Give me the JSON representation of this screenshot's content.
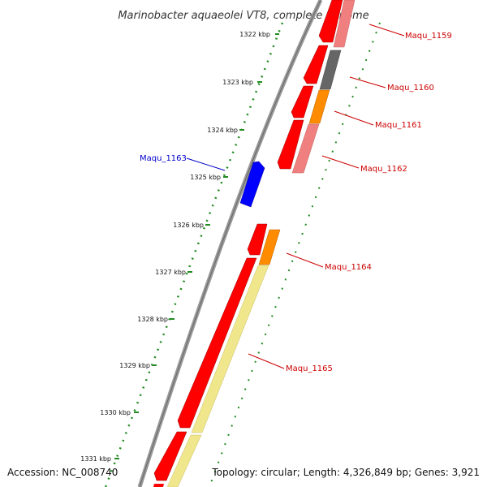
{
  "title": "Marinobacter aquaeolei VT8, complete genome",
  "accession": "Accession: NC_008740",
  "topology": "Topology: circular; Length: 4,326,849 bp; Genes: 3,921",
  "kbp_labels": [
    "1322 kbp",
    "1323 kbp",
    "1324 kbp",
    "1325 kbp",
    "1326 kbp",
    "1327 kbp",
    "1328 kbp",
    "1329 kbp",
    "1330 kbp",
    "1331 kbp"
  ],
  "genes": [
    {
      "name": "Maqu_1159",
      "color": "#cc0000"
    },
    {
      "name": "Maqu_1160",
      "color": "#cc0000"
    },
    {
      "name": "Maqu_1161",
      "color": "#cc0000"
    },
    {
      "name": "Maqu_1162",
      "color": "#cc0000"
    },
    {
      "name": "Maqu_1163",
      "color": "#0000cc"
    },
    {
      "name": "Maqu_1164",
      "color": "#cc0000"
    },
    {
      "name": "Maqu_1165",
      "color": "#cc0000"
    }
  ],
  "colors": {
    "cds": "#ff0000",
    "gene_pink": "#f08080",
    "gene_gray": "#666666",
    "gene_orange": "#ff8c00",
    "gene_yellow": "#f0e68c",
    "blue_gene": "#0000ff",
    "backbone": "#888888",
    "tick": "#006400"
  }
}
